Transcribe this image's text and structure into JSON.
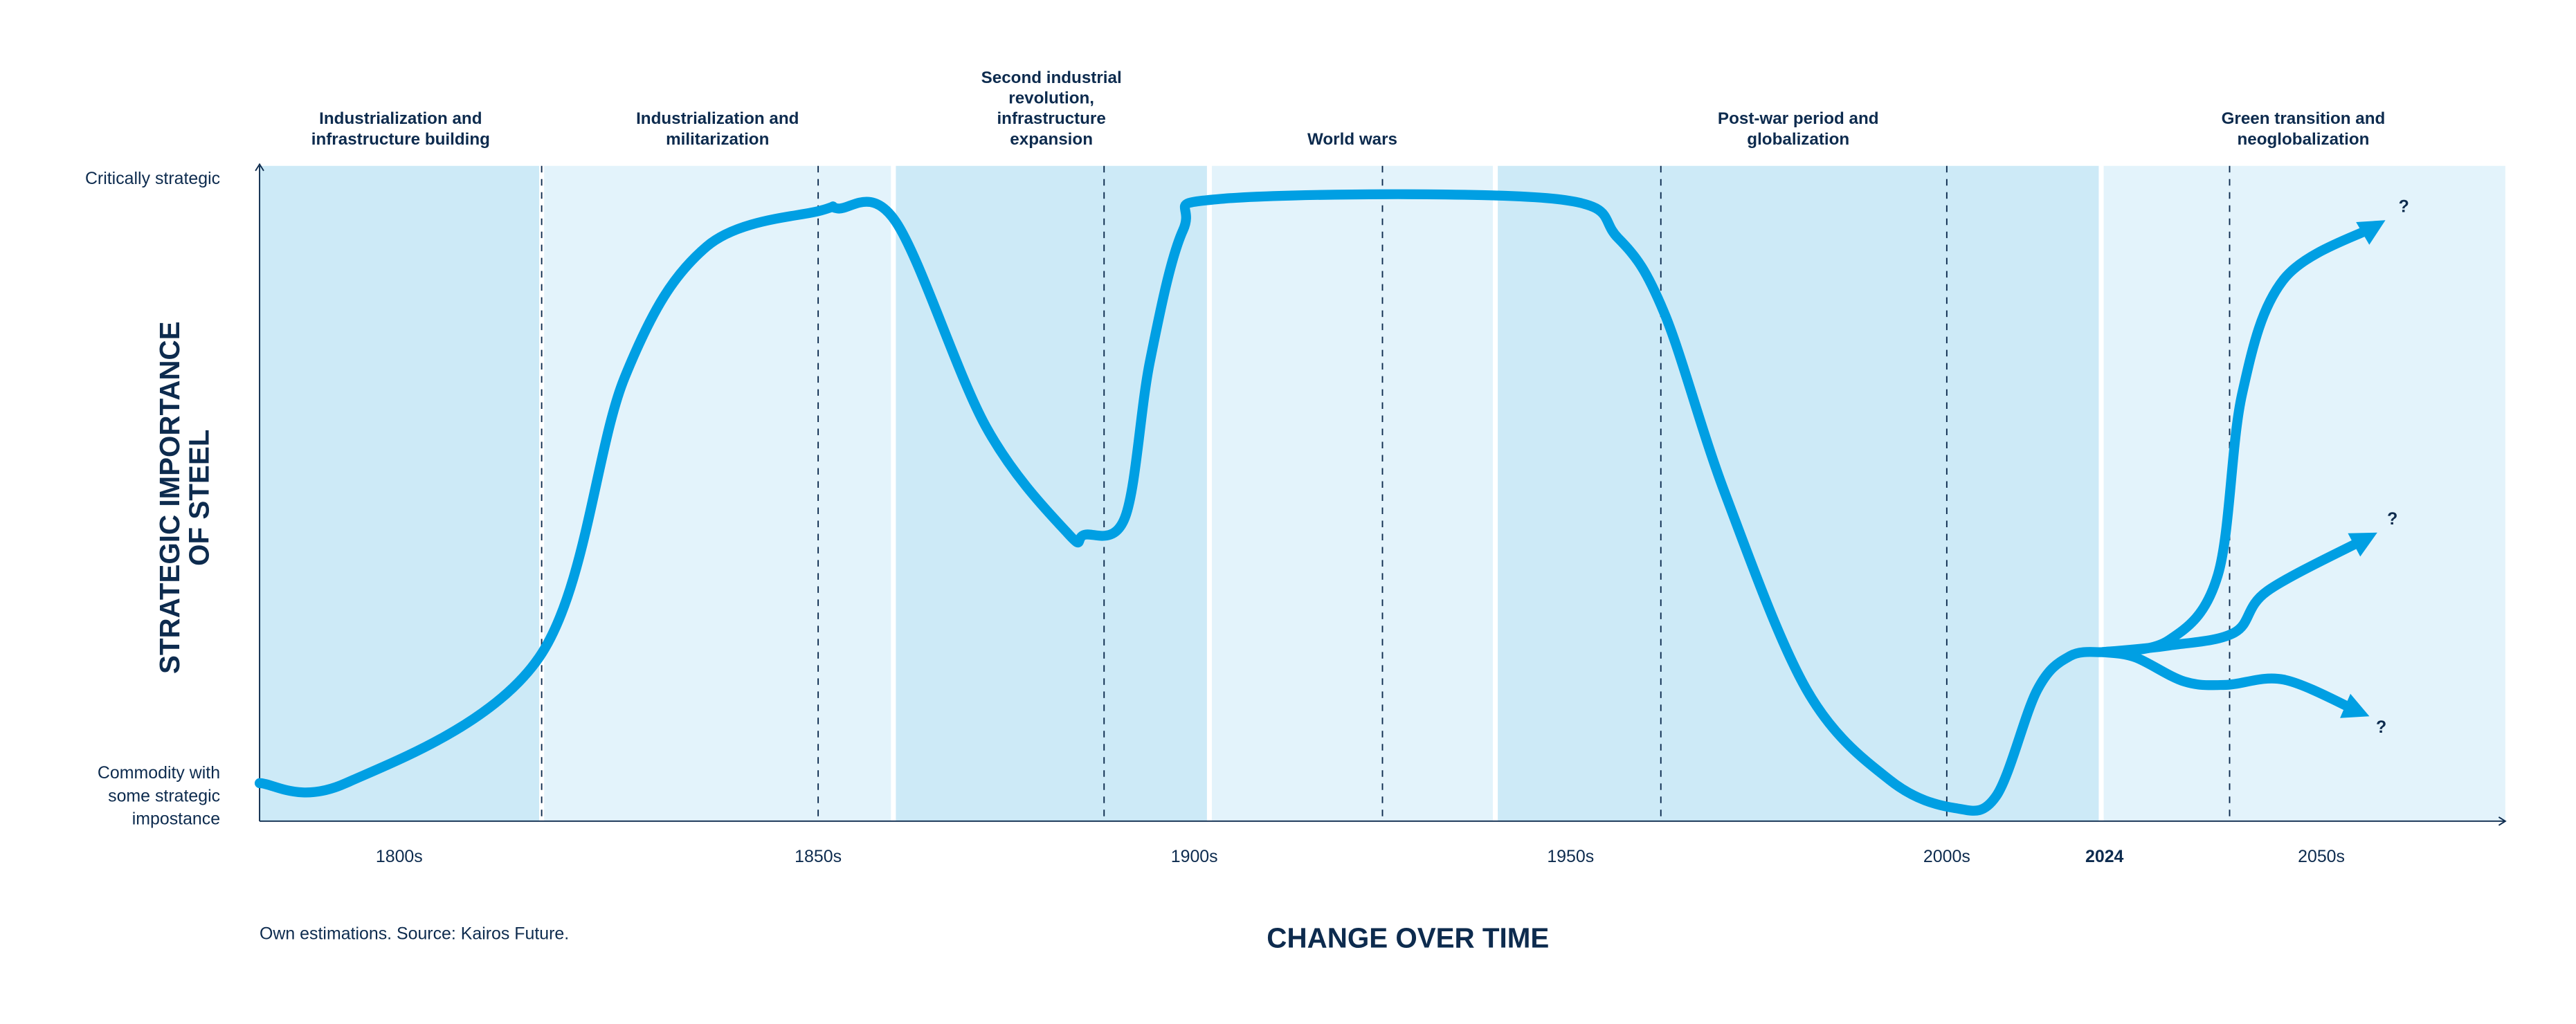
{
  "chart_data": {
    "type": "line",
    "xlabel": "CHANGE OVER TIME",
    "ylabel_lines": [
      "STRATEGIC IMPORTANCE",
      "OF STEEL"
    ],
    "y_ticks": [
      {
        "value": 1,
        "label": [
          "Critically strategic"
        ]
      },
      {
        "value": 0.06,
        "label": [
          "Commodity with",
          "some strategic",
          "impostance"
        ]
      }
    ],
    "ylim": [
      0,
      1
    ],
    "xlim": [
      1783,
      2072
    ],
    "x_ticks": [
      {
        "value": 1800,
        "label": "1800s",
        "bold": false
      },
      {
        "value": 1850,
        "label": "1850s",
        "bold": false
      },
      {
        "value": 1900,
        "label": "1900s",
        "bold": false
      },
      {
        "value": 1950,
        "label": "1950s",
        "bold": false
      },
      {
        "value": 2000,
        "label": "2000s",
        "bold": false
      },
      {
        "value": 2024,
        "label": "2024",
        "bold": true
      },
      {
        "value": 2050,
        "label": "2050s",
        "bold": false
      }
    ],
    "eras": [
      {
        "start": 1783,
        "end": 1817,
        "shade": "dark",
        "label": [
          "Industrialization and",
          "infrastructure building"
        ]
      },
      {
        "start": 1817,
        "end": 1860,
        "shade": "light",
        "label": [
          "Industrialization and",
          "militarization"
        ]
      },
      {
        "start": 1860,
        "end": 1902,
        "shade": "dark",
        "label": [
          "Second industrial",
          "revolution,",
          "infrastructure",
          "expansion"
        ]
      },
      {
        "start": 1902,
        "end": 1940,
        "shade": "light",
        "label": [
          "World wars"
        ]
      },
      {
        "start": 1940,
        "end": 2023.5,
        "shade": "dark",
        "label": [
          "Post-war period and",
          "globalization"
        ]
      },
      {
        "start": 2023.5,
        "end": 2072,
        "shade": "light",
        "label": [
          "Green transition and",
          "neoglobalization"
        ]
      }
    ],
    "dashed_years": [
      1817,
      1850,
      1888,
      1925,
      1962,
      2000,
      2039
    ],
    "series": [
      {
        "points": [
          [
            1783,
            0.058
          ],
          [
            1793.5,
            0.058
          ],
          [
            1816.7,
            0.25
          ],
          [
            1826.9,
            0.677
          ],
          [
            1836.7,
            0.877
          ],
          [
            1850.4,
            0.932
          ],
          [
            1852.6,
            0.935
          ],
          [
            1860.3,
            0.915
          ],
          [
            1872.3,
            0.602
          ],
          [
            1883.2,
            0.439
          ],
          [
            1885.4,
            0.437
          ],
          [
            1890.8,
            0.464
          ],
          [
            1894.1,
            0.702
          ],
          [
            1898.5,
            0.902
          ],
          [
            1903.9,
            0.95
          ],
          [
            1947.6,
            0.95
          ],
          [
            1956.3,
            0.89
          ],
          [
            1962.4,
            0.777
          ],
          [
            1970.5,
            0.501
          ],
          [
            1981.4,
            0.2
          ],
          [
            1992.4,
            0.063
          ],
          [
            2001.25,
            0.02
          ],
          [
            2007.5,
            0.038
          ],
          [
            2013.75,
            0.2
          ],
          [
            2018.75,
            0.252
          ],
          [
            2023.75,
            0.258
          ]
        ]
      },
      {
        "points": [
          [
            2023.75,
            0.258
          ],
          [
            2031.7,
            0.276
          ],
          [
            2037.6,
            0.376
          ],
          [
            2040.5,
            0.652
          ],
          [
            2045.5,
            0.827
          ],
          [
            2056.3,
            0.907
          ]
        ],
        "arrow": true,
        "annotation": "?"
      },
      {
        "points": [
          [
            2023.75,
            0.258
          ],
          [
            2031.7,
            0.268
          ],
          [
            2039.6,
            0.288
          ],
          [
            2043.5,
            0.351
          ],
          [
            2055.3,
            0.431
          ]
        ],
        "arrow": true,
        "annotation": "?"
      },
      {
        "points": [
          [
            2023.75,
            0.258
          ],
          [
            2027.7,
            0.25
          ],
          [
            2033.6,
            0.213
          ],
          [
            2038.6,
            0.208
          ],
          [
            2045.5,
            0.216
          ],
          [
            2054.3,
            0.168
          ]
        ],
        "arrow": true,
        "annotation": "?"
      }
    ],
    "grid": false,
    "legend": "none"
  },
  "source_note": "Own estimations. Source: Kairos Future.",
  "colors": {
    "line": "#009fe3",
    "band_dark": "#cdeaf7",
    "band_light": "#e3f3fb",
    "text": "#0d2b4e"
  }
}
